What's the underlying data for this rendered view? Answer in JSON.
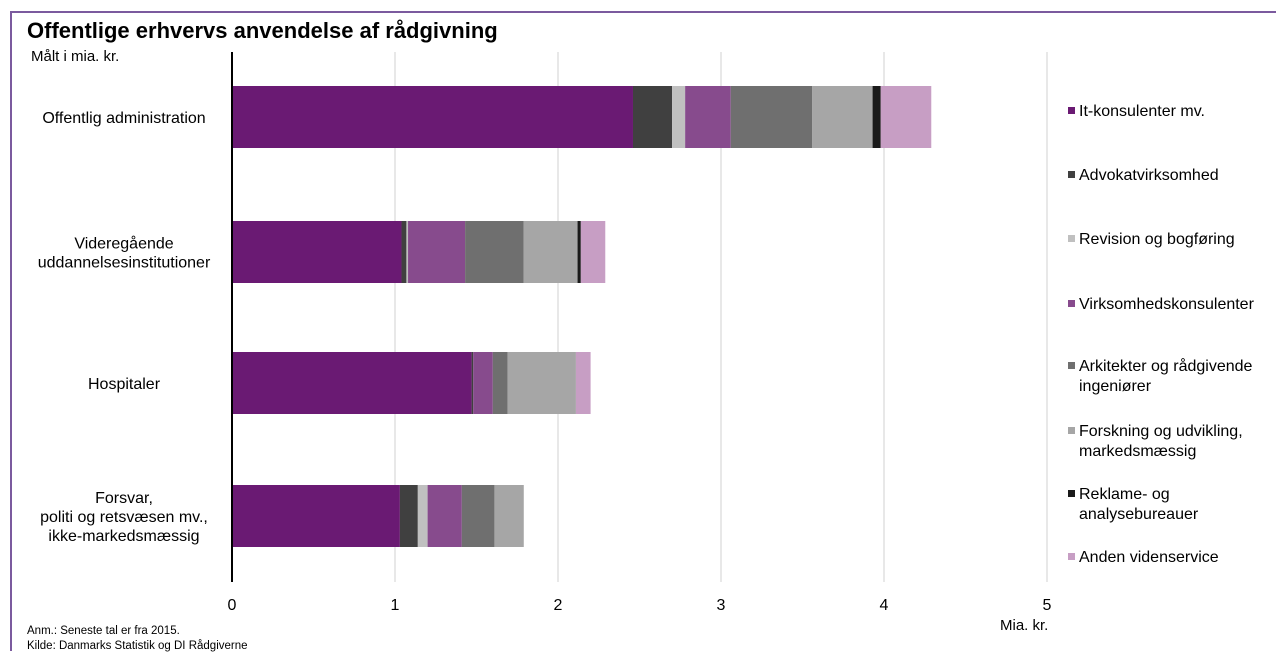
{
  "chart_data": {
    "type": "bar",
    "orientation": "horizontal",
    "stacked": true,
    "title": "Offentlige erhvervs anvendelse af rådgivning",
    "subtitle": "Målt i mia. kr.",
    "xlabel": "Mia. kr.",
    "xlim": [
      0,
      5
    ],
    "xticks": [
      "0",
      "1",
      "2",
      "3",
      "4",
      "5"
    ],
    "grid": "vertical",
    "legend_position": "right",
    "categories": [
      [
        "Offentlig administration"
      ],
      [
        "Videregående",
        "uddannelsesinstitutioner"
      ],
      [
        "Hospitaler"
      ],
      [
        "Forsvar,",
        "politi og retsvæsen mv.,",
        "ikke-markedsmæssig"
      ]
    ],
    "series": [
      {
        "name": [
          "It-konsulenter mv."
        ],
        "color": "#6a1a73",
        "values": [
          2.46,
          1.04,
          1.47,
          1.03
        ]
      },
      {
        "name": [
          "Advokatvirksomhed"
        ],
        "color": "#404040",
        "values": [
          0.24,
          0.03,
          0.01,
          0.11
        ]
      },
      {
        "name": [
          "Revision og bogføring"
        ],
        "color": "#c0c0c0",
        "values": [
          0.08,
          0.01,
          0.0,
          0.06
        ]
      },
      {
        "name": [
          "Virksomhedskonsulenter"
        ],
        "color": "#874b8d",
        "values": [
          0.28,
          0.35,
          0.12,
          0.21
        ]
      },
      {
        "name": [
          "Arkitekter og rådgivende",
          "ingeniører"
        ],
        "color": "#6f6f6f",
        "values": [
          0.5,
          0.36,
          0.09,
          0.2
        ]
      },
      {
        "name": [
          "Forskning og udvikling,",
          "markedsmæssig"
        ],
        "color": "#a6a6a6",
        "values": [
          0.37,
          0.33,
          0.42,
          0.18
        ]
      },
      {
        "name": [
          "Reklame- og",
          "analysebureauer"
        ],
        "color": "#1a1a1a",
        "values": [
          0.05,
          0.02,
          0.0,
          0.0
        ]
      },
      {
        "name": [
          "Anden videnservice"
        ],
        "color": "#c79ec4",
        "values": [
          0.31,
          0.15,
          0.09,
          0.0
        ]
      }
    ],
    "notes": [
      "Anm.: Seneste tal er fra 2015.",
      "Kilde: Danmarks Statistik og DI Rådgiverne"
    ]
  }
}
